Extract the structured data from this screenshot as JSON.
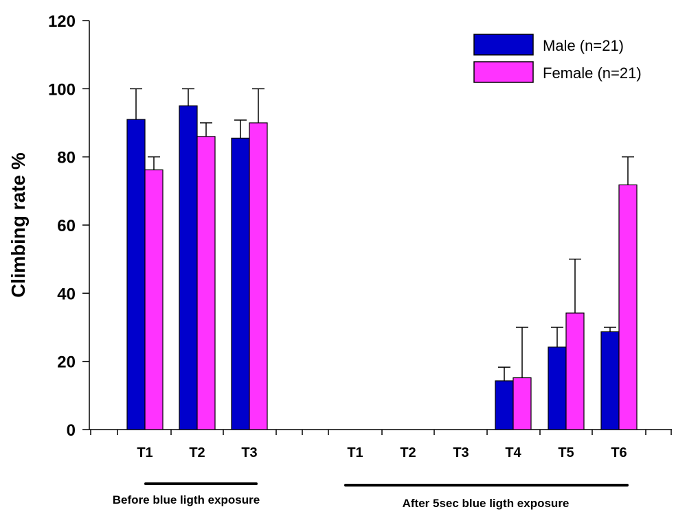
{
  "chart_data": {
    "type": "bar",
    "ylabel": "Climbing rate %",
    "ylim": [
      0,
      120
    ],
    "yticks": [
      0,
      20,
      40,
      60,
      80,
      100,
      120
    ],
    "categories": [
      "T1",
      "T2",
      "T3",
      "T1",
      "T2",
      "T3",
      "T4",
      "T5",
      "T6"
    ],
    "series": [
      {
        "name": "Male (n=21)",
        "color": "#0000CC",
        "values": [
          91,
          95,
          85.5,
          0,
          0,
          0,
          14.3,
          24.2,
          28.7
        ],
        "errors": [
          9,
          5,
          5.3,
          0,
          0,
          0,
          4,
          5.8,
          1.3
        ]
      },
      {
        "name": "Female (n=21)",
        "color": "#FF33FF",
        "values": [
          76.2,
          86,
          90,
          0,
          0,
          0,
          15.2,
          34.2,
          71.8
        ],
        "errors": [
          3.8,
          4,
          10,
          0,
          0,
          0,
          14.8,
          15.8,
          8.2
        ]
      }
    ],
    "groups": [
      {
        "label": "Before blue ligth exposure",
        "categories": [
          "T1",
          "T2",
          "T3"
        ]
      },
      {
        "label": "After 5sec blue ligth exposure",
        "categories": [
          "T1",
          "T2",
          "T3",
          "T4",
          "T5",
          "T6"
        ]
      }
    ],
    "legend_position": "top-right"
  }
}
